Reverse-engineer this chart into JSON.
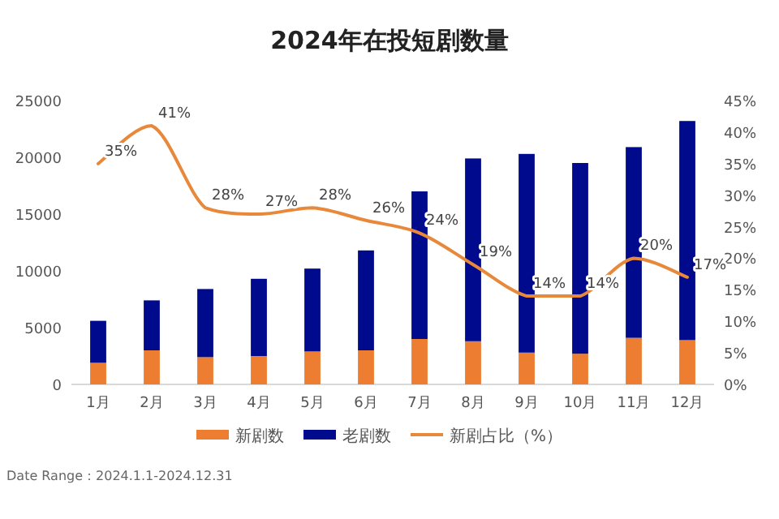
{
  "chart_data": {
    "type": "bar",
    "title": "2024年在投短剧数量",
    "categories": [
      "1月",
      "2月",
      "3月",
      "4月",
      "5月",
      "6月",
      "7月",
      "8月",
      "9月",
      "10月",
      "11月",
      "12月"
    ],
    "stacked": true,
    "series": [
      {
        "name": "新剧数",
        "color": "#ed7d31",
        "values": [
          1900,
          3000,
          2400,
          2500,
          2900,
          3000,
          4000,
          3800,
          2800,
          2700,
          4100,
          3900
        ]
      },
      {
        "name": "老剧数",
        "color": "#000a8c",
        "values": [
          3700,
          4400,
          6000,
          6800,
          7300,
          8800,
          13000,
          16100,
          17500,
          16800,
          16800,
          19300
        ]
      },
      {
        "name": "新剧占比（%）",
        "type": "line",
        "axis": "y2",
        "color": "#e8883a",
        "line_style": "solid",
        "marker": "none",
        "values": [
          35,
          41,
          28,
          27,
          28,
          26,
          24,
          19,
          14,
          14,
          20,
          17
        ],
        "value_labels": [
          "35%",
          "41%",
          "28%",
          "27%",
          "28%",
          "26%",
          "24%",
          "19%",
          "14%",
          "14%",
          "20%",
          "17%"
        ]
      }
    ],
    "ylim": [
      0,
      25000
    ],
    "yticks": [
      0,
      5000,
      10000,
      15000,
      20000,
      25000
    ],
    "y2lim": [
      0,
      45
    ],
    "y2ticks": [
      {
        "value": 0,
        "label": "0%"
      },
      {
        "value": 5,
        "label": "5%"
      },
      {
        "value": 10,
        "label": "10%"
      },
      {
        "value": 15,
        "label": "15%"
      },
      {
        "value": 20,
        "label": "20%"
      },
      {
        "value": 25,
        "label": "25%"
      },
      {
        "value": 30,
        "label": "30%"
      },
      {
        "value": 35,
        "label": "35%"
      },
      {
        "value": 40,
        "label": "40%"
      },
      {
        "value": 45,
        "label": "45%"
      }
    ],
    "grid": false,
    "legend": "bottom",
    "annotations": [
      "Date Range：2024.1.1-2024.12.31"
    ]
  }
}
